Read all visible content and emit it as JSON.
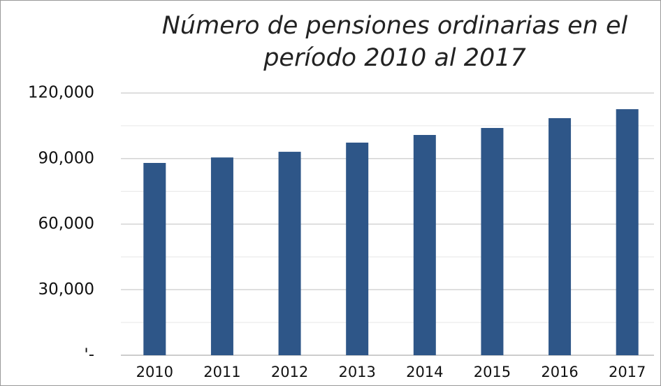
{
  "chart_data": {
    "type": "bar",
    "title": "Número de pensiones ordinarias en el período 2010 al 2017",
    "categories": [
      "2010",
      "2011",
      "2012",
      "2013",
      "2014",
      "2015",
      "2016",
      "2017"
    ],
    "values": [
      88000,
      90500,
      93100,
      97300,
      100800,
      104000,
      108500,
      112600
    ],
    "color": "#2e5688",
    "ylim": [
      0,
      120000
    ],
    "yticks": [
      {
        "value": 0,
        "label": "'-"
      },
      {
        "value": 30000,
        "label": "30,000"
      },
      {
        "value": 60000,
        "label": "60,000"
      },
      {
        "value": 90000,
        "label": "90,000"
      },
      {
        "value": 120000,
        "label": "120,000"
      }
    ],
    "minor_yticks": [
      15000,
      45000,
      75000,
      105000
    ],
    "grid": true
  }
}
